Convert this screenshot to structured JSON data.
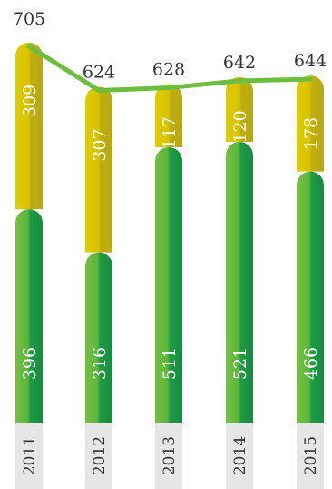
{
  "chart_data": {
    "type": "bar",
    "stacked": true,
    "categories": [
      "2011",
      "2012",
      "2013",
      "2014",
      "2015"
    ],
    "series": [
      {
        "values": [
          396,
          316,
          511,
          521,
          466
        ],
        "color": "#3fae3a"
      },
      {
        "values": [
          309,
          307,
          117,
          120,
          178
        ],
        "color": "#d8c400"
      }
    ],
    "totals": [
      705,
      624,
      628,
      642,
      644
    ],
    "total_line_color": "#6cbf3e",
    "year_band_color": "#e6e6e6",
    "ylim": [
      0,
      720
    ],
    "title": "",
    "xlabel": "",
    "ylabel": ""
  }
}
